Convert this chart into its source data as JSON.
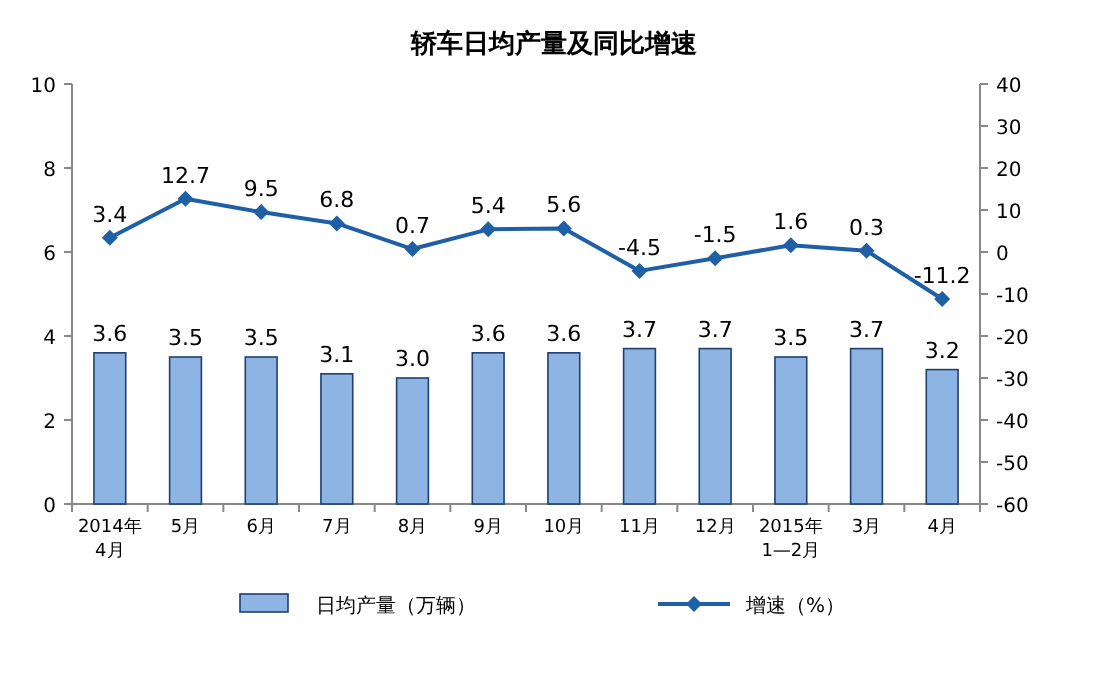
{
  "chart_data": {
    "type": "bar",
    "title": "轿车日均产量及同比增速",
    "categories": [
      "2014年\n4月",
      "5月",
      "6月",
      "7月",
      "8月",
      "9月",
      "10月",
      "11月",
      "12月",
      "2015年\n1—2月",
      "3月",
      "4月"
    ],
    "series": [
      {
        "name": "日均产量（万辆）",
        "color": "#8db4e2",
        "values": [
          3.6,
          3.5,
          3.5,
          3.1,
          3.0,
          3.6,
          3.6,
          3.7,
          3.7,
          3.5,
          3.7,
          3.2
        ],
        "value_labels": [
          "3.6",
          "3.5",
          "3.5",
          "3.1",
          "3.0",
          "3.6",
          "3.6",
          "3.7",
          "3.7",
          "3.5",
          "3.7",
          "3.2"
        ]
      },
      {
        "name": "增速（%）",
        "type": "line",
        "axis": "y2",
        "color": "#1f5fa6",
        "marker": "diamond",
        "values": [
          3.4,
          12.7,
          9.5,
          6.8,
          0.7,
          5.4,
          5.6,
          -4.5,
          -1.5,
          1.6,
          0.3,
          -11.2
        ],
        "value_labels": [
          "3.4",
          "12.7",
          "9.5",
          "6.8",
          "0.7",
          "5.4",
          "5.6",
          "-4.5",
          "-1.5",
          "1.6",
          "0.3",
          "-11.2"
        ]
      }
    ],
    "ylim": [
      0,
      10
    ],
    "yticks": [
      0,
      2,
      4,
      6,
      8,
      10
    ],
    "y2lim": [
      -60,
      40
    ],
    "y2ticks": [
      -60,
      -50,
      -40,
      -30,
      -20,
      -10,
      0,
      10,
      20,
      30,
      40
    ],
    "legend": "bottom",
    "grid": false
  }
}
